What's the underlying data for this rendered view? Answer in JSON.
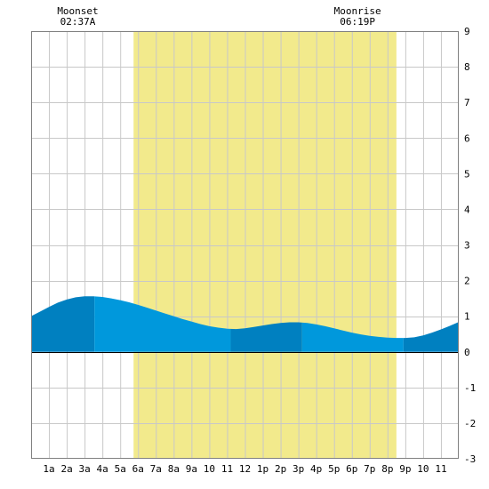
{
  "moon": {
    "moonset": {
      "label": "Moonset",
      "time": "02:37A",
      "hour": 2.62
    },
    "moonrise": {
      "label": "Moonrise",
      "time": "06:19P",
      "hour": 18.32
    }
  },
  "chart_data": {
    "type": "area",
    "title": "",
    "xlabel": "",
    "ylabel": "",
    "xlim": [
      0,
      24
    ],
    "ylim": [
      -3,
      9
    ],
    "y_ticks": [
      "-3",
      "-2",
      "-1",
      "0",
      "1",
      "2",
      "3",
      "4",
      "5",
      "6",
      "7",
      "8",
      "9"
    ],
    "x_ticks": [
      {
        "h": 1,
        "label": "1a"
      },
      {
        "h": 2,
        "label": "2a"
      },
      {
        "h": 3,
        "label": "3a"
      },
      {
        "h": 4,
        "label": "4a"
      },
      {
        "h": 5,
        "label": "5a"
      },
      {
        "h": 6,
        "label": "6a"
      },
      {
        "h": 7,
        "label": "7a"
      },
      {
        "h": 8,
        "label": "8a"
      },
      {
        "h": 9,
        "label": "9a"
      },
      {
        "h": 10,
        "label": "10"
      },
      {
        "h": 11,
        "label": "11"
      },
      {
        "h": 12,
        "label": "12"
      },
      {
        "h": 13,
        "label": "1p"
      },
      {
        "h": 14,
        "label": "2p"
      },
      {
        "h": 15,
        "label": "3p"
      },
      {
        "h": 16,
        "label": "4p"
      },
      {
        "h": 17,
        "label": "5p"
      },
      {
        "h": 18,
        "label": "6p"
      },
      {
        "h": 19,
        "label": "7p"
      },
      {
        "h": 20,
        "label": "8p"
      },
      {
        "h": 21,
        "label": "9p"
      },
      {
        "h": 22,
        "label": "10"
      },
      {
        "h": 23,
        "label": "11"
      }
    ],
    "daylight": {
      "start_hour": 5.75,
      "end_hour": 20.5
    },
    "tide_series": {
      "x": [
        0,
        0.5,
        1,
        1.5,
        2,
        2.5,
        3,
        3.5,
        4,
        4.5,
        5,
        5.5,
        6,
        6.5,
        7,
        7.5,
        8,
        8.5,
        9,
        9.5,
        10,
        10.5,
        11,
        11.5,
        12,
        12.5,
        13,
        13.5,
        14,
        14.5,
        15,
        15.5,
        16,
        16.5,
        17,
        17.5,
        18,
        18.5,
        19,
        19.5,
        20,
        20.5,
        21,
        21.5,
        22,
        22.5,
        23,
        23.5,
        24
      ],
      "y": [
        1.0,
        1.13,
        1.26,
        1.38,
        1.47,
        1.53,
        1.56,
        1.56,
        1.54,
        1.5,
        1.45,
        1.39,
        1.32,
        1.24,
        1.16,
        1.08,
        1.0,
        0.92,
        0.85,
        0.78,
        0.72,
        0.68,
        0.65,
        0.64,
        0.66,
        0.7,
        0.74,
        0.78,
        0.81,
        0.83,
        0.83,
        0.81,
        0.77,
        0.72,
        0.66,
        0.6,
        0.54,
        0.49,
        0.45,
        0.42,
        0.4,
        0.39,
        0.39,
        0.41,
        0.46,
        0.54,
        0.63,
        0.73,
        0.84
      ]
    },
    "tide_bands": [
      {
        "from": 0,
        "to": 3.55,
        "color": "#0080c0"
      },
      {
        "from": 3.55,
        "to": 11.2,
        "color": "#0098dc"
      },
      {
        "from": 11.2,
        "to": 15.2,
        "color": "#0080c0"
      },
      {
        "from": 15.2,
        "to": 20.9,
        "color": "#0098dc"
      },
      {
        "from": 20.9,
        "to": 24,
        "color": "#0080c0"
      }
    ],
    "colors": {
      "daylight": "#f2ea8c",
      "grid": "#c8c8c8",
      "border": "#808080"
    }
  }
}
